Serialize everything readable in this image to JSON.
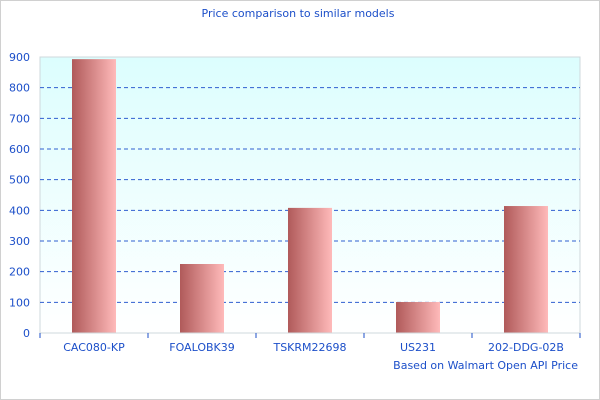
{
  "chart_data": {
    "type": "bar",
    "title": "Price comparison to similar models",
    "categories": [
      "CAC080-KP",
      "FOALOBK39",
      "TSKRM22698",
      "US231",
      "202-DDG-02B"
    ],
    "values": [
      893,
      225,
      408,
      101,
      414
    ],
    "xlabel": "Based on Walmart Open API Price",
    "ylabel": "",
    "ylim": [
      0,
      900
    ],
    "yticks": [
      0,
      100,
      200,
      300,
      400,
      500,
      600,
      700,
      800,
      900
    ],
    "grid": true,
    "colors": {
      "bar_dark": "#b05a5a",
      "bar_light": "#ffbaba",
      "text": "#1c4fc9",
      "grid": "#2f5fd0",
      "bg_top": "#dcfefe",
      "bg_bottom": "#ffffff"
    }
  }
}
